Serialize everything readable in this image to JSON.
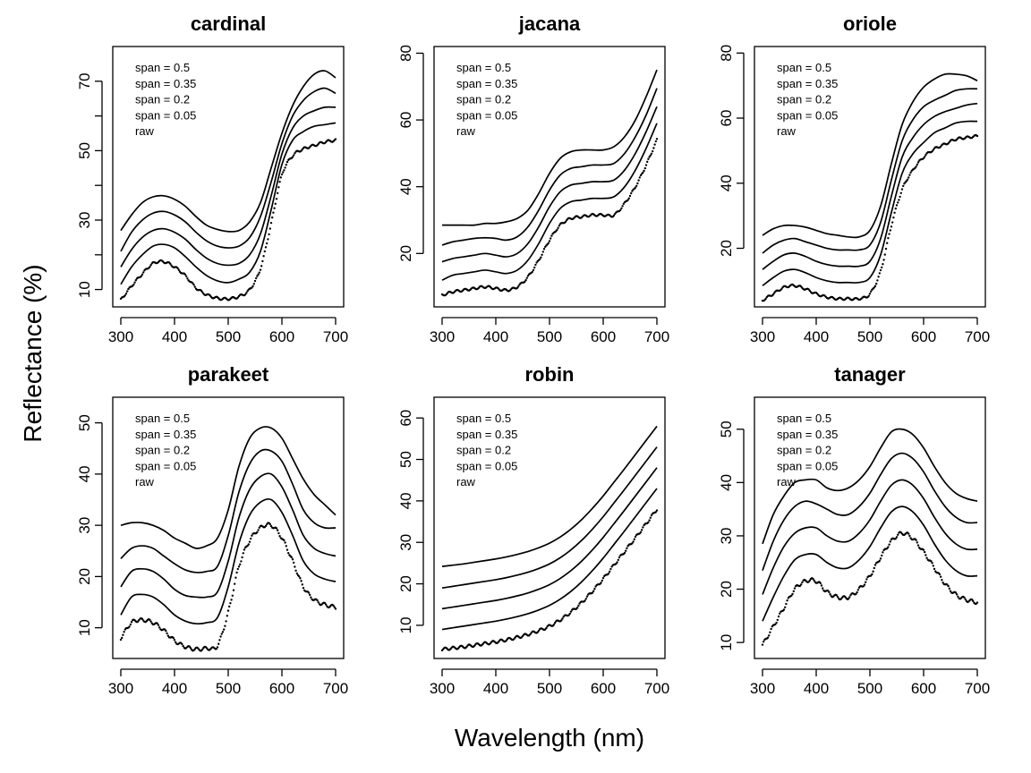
{
  "figure": {
    "xlabel": "Wavelength (nm)",
    "ylabel": "Reflectance (%)",
    "legend_entries": [
      "span = 0.5",
      "span = 0.35",
      "span = 0.2",
      "span = 0.05",
      "raw"
    ]
  },
  "chart_data": [
    {
      "type": "line",
      "title": "cardinal",
      "xlim": [
        300,
        700
      ],
      "ylim": [
        5,
        80
      ],
      "xticks": [
        300,
        400,
        500,
        600,
        700
      ],
      "yticks": [
        10,
        20,
        30,
        40,
        50,
        60,
        70
      ],
      "ytick_labels": [
        "10",
        "",
        "30",
        "",
        "50",
        "",
        "70"
      ],
      "legend_position": "top-left",
      "x": [
        300,
        320,
        340,
        360,
        380,
        400,
        420,
        440,
        460,
        480,
        500,
        520,
        540,
        560,
        580,
        600,
        620,
        640,
        660,
        680,
        700
      ],
      "series": [
        {
          "name": "raw",
          "style": "points",
          "values": [
            7,
            11,
            14.5,
            17.5,
            18,
            16.5,
            14,
            10.5,
            8.5,
            7.5,
            7.3,
            8,
            10,
            16,
            29,
            43,
            48.5,
            50.5,
            51.5,
            52.5,
            53
          ]
        },
        {
          "name": "span = 0.05",
          "style": "line",
          "values": [
            11.5,
            16.5,
            20,
            22.5,
            23,
            22,
            19.5,
            16.5,
            14,
            12.5,
            12,
            13,
            15,
            21,
            33,
            46,
            53,
            55.5,
            57,
            57.5,
            58
          ]
        },
        {
          "name": "span = 0.2",
          "style": "line",
          "values": [
            16.5,
            21.5,
            25,
            27,
            27.5,
            26.5,
            24.5,
            21.5,
            19,
            17.5,
            17,
            17.5,
            20,
            26,
            37,
            49,
            56.5,
            60,
            61.5,
            62.5,
            62.5
          ]
        },
        {
          "name": "span = 0.35",
          "style": "line",
          "values": [
            21,
            26.5,
            30,
            32,
            32.5,
            31.5,
            29.5,
            26.5,
            24,
            22.5,
            22,
            22.5,
            25,
            31,
            41,
            52,
            60,
            64.5,
            67,
            68,
            66.5
          ]
        },
        {
          "name": "span = 0.5",
          "style": "line",
          "values": [
            27,
            31.5,
            35,
            36.7,
            37,
            36,
            34,
            31,
            28.5,
            27.3,
            26.7,
            27,
            29.5,
            35,
            45,
            55,
            63,
            68.5,
            72,
            73,
            71
          ]
        }
      ]
    },
    {
      "type": "line",
      "title": "jacana",
      "xlim": [
        300,
        700
      ],
      "ylim": [
        4,
        82
      ],
      "xticks": [
        300,
        400,
        500,
        600,
        700
      ],
      "yticks": [
        20,
        40,
        60,
        80
      ],
      "ytick_labels": [
        "20",
        "40",
        "60",
        "80"
      ],
      "legend_position": "top-left",
      "x": [
        300,
        320,
        340,
        360,
        380,
        400,
        420,
        440,
        460,
        480,
        500,
        520,
        540,
        560,
        580,
        600,
        620,
        640,
        660,
        680,
        700
      ],
      "series": [
        {
          "name": "raw",
          "style": "points",
          "values": [
            7.5,
            8.5,
            9,
            9.5,
            10,
            9.5,
            9,
            10,
            13,
            18,
            24,
            28.5,
            30.5,
            31,
            31.5,
            31.5,
            31.5,
            35,
            40,
            46.5,
            54
          ]
        },
        {
          "name": "span = 0.05",
          "style": "line",
          "values": [
            12,
            13.5,
            14,
            14.5,
            15,
            14.5,
            14,
            15,
            18,
            23,
            29,
            33.5,
            35.5,
            36,
            36.5,
            36.5,
            37,
            40,
            45,
            51.5,
            59
          ]
        },
        {
          "name": "span = 0.2",
          "style": "line",
          "values": [
            17.5,
            18.5,
            19,
            19.5,
            20,
            19.5,
            19,
            20,
            23,
            28,
            34,
            38.5,
            40.5,
            41,
            41.5,
            41.5,
            42,
            45,
            50,
            56.5,
            64
          ]
        },
        {
          "name": "span = 0.35",
          "style": "line",
          "values": [
            22.5,
            23.5,
            24,
            24.5,
            24.7,
            24.5,
            24,
            25,
            28,
            33,
            39,
            43.5,
            45.5,
            46,
            46.5,
            46.5,
            47,
            50,
            55,
            61.5,
            69.5
          ]
        },
        {
          "name": "span = 0.5",
          "style": "line",
          "values": [
            28.5,
            28.5,
            28.5,
            28.5,
            29,
            29,
            29.5,
            30.5,
            33,
            38,
            44,
            48.5,
            50.5,
            51,
            51,
            51,
            52,
            55,
            60,
            67,
            75
          ]
        }
      ]
    },
    {
      "type": "line",
      "title": "oriole",
      "xlim": [
        300,
        700
      ],
      "ylim": [
        2,
        82
      ],
      "xticks": [
        300,
        400,
        500,
        600,
        700
      ],
      "yticks": [
        20,
        40,
        60,
        80
      ],
      "ytick_labels": [
        "20",
        "40",
        "60",
        "80"
      ],
      "legend_position": "top-left",
      "x": [
        300,
        320,
        340,
        360,
        380,
        400,
        420,
        440,
        460,
        480,
        500,
        520,
        540,
        560,
        580,
        600,
        620,
        640,
        660,
        680,
        700
      ],
      "series": [
        {
          "name": "raw",
          "style": "points",
          "values": [
            4,
            6,
            8,
            8.5,
            7.5,
            6,
            5,
            4.5,
            4.5,
            4.5,
            6,
            13,
            27,
            38,
            44,
            48,
            50.5,
            52,
            53.5,
            54,
            54.5
          ]
        },
        {
          "name": "span = 0.05",
          "style": "line",
          "values": [
            8.5,
            11,
            13,
            13.5,
            12.5,
            11,
            10,
            9.5,
            9.5,
            9.5,
            11,
            18,
            31,
            43,
            49,
            52.5,
            55.5,
            57,
            58.5,
            59,
            59
          ]
        },
        {
          "name": "span = 0.2",
          "style": "line",
          "values": [
            13.5,
            16,
            18,
            18.5,
            17.5,
            16,
            15,
            14.5,
            14.5,
            14.5,
            16,
            23,
            36,
            48,
            54,
            58,
            60.5,
            62,
            63,
            64,
            64.5
          ]
        },
        {
          "name": "span = 0.35",
          "style": "line",
          "values": [
            18.5,
            21,
            22.5,
            23,
            22,
            21,
            20,
            19.5,
            19.5,
            19.5,
            21,
            28,
            41,
            53,
            59.5,
            63.5,
            65.5,
            67,
            68.5,
            69,
            69
          ]
        },
        {
          "name": "span = 0.5",
          "style": "line",
          "values": [
            24,
            26,
            27,
            27,
            26.5,
            25.5,
            24.5,
            24,
            23.5,
            23.5,
            25.5,
            33,
            46,
            58,
            65,
            69.5,
            72,
            73.5,
            73.5,
            73,
            71.5
          ]
        }
      ]
    },
    {
      "type": "line",
      "title": "parakeet",
      "xlim": [
        300,
        700
      ],
      "ylim": [
        4,
        55
      ],
      "xticks": [
        300,
        400,
        500,
        600,
        700
      ],
      "yticks": [
        10,
        20,
        30,
        40,
        50
      ],
      "ytick_labels": [
        "10",
        "20",
        "30",
        "40",
        "50"
      ],
      "legend_position": "top-left",
      "x": [
        300,
        320,
        340,
        360,
        380,
        400,
        420,
        440,
        460,
        480,
        500,
        520,
        540,
        560,
        580,
        600,
        620,
        640,
        660,
        680,
        700
      ],
      "series": [
        {
          "name": "raw",
          "style": "points",
          "values": [
            8,
            11,
            11.5,
            11,
            9.5,
            7.5,
            6.3,
            5.8,
            6,
            6.5,
            13,
            22,
            27,
            29.5,
            30,
            27.5,
            23,
            18,
            15.5,
            14.5,
            14
          ]
        },
        {
          "name": "span = 0.05",
          "style": "line",
          "values": [
            12.5,
            16,
            16.5,
            16,
            14.5,
            12.5,
            11.3,
            10.8,
            11,
            12,
            18,
            26.5,
            32,
            34.5,
            35,
            32.5,
            28,
            23,
            20.5,
            19.5,
            19
          ]
        },
        {
          "name": "span = 0.2",
          "style": "line",
          "values": [
            18,
            21,
            21.5,
            21,
            19.5,
            17.5,
            16.3,
            16,
            16,
            17,
            23,
            31.5,
            37,
            39.5,
            40,
            37.5,
            33,
            28,
            25.5,
            24.5,
            24
          ]
        },
        {
          "name": "span = 0.35",
          "style": "line",
          "values": [
            23.5,
            25.5,
            26,
            25.5,
            24,
            22.5,
            21.3,
            20.8,
            21,
            22,
            28,
            36.5,
            42,
            44.5,
            44.5,
            42.5,
            38,
            33,
            30.5,
            29.5,
            29.5
          ]
        },
        {
          "name": "span = 0.5",
          "style": "line",
          "values": [
            30,
            30.5,
            30.5,
            30,
            29,
            27.5,
            26.5,
            25.5,
            26,
            27.5,
            33,
            41.5,
            47,
            49,
            49,
            47,
            43,
            39,
            36,
            34,
            32
          ]
        }
      ]
    },
    {
      "type": "line",
      "title": "robin",
      "xlim": [
        300,
        700
      ],
      "ylim": [
        2,
        65
      ],
      "xticks": [
        300,
        400,
        500,
        600,
        700
      ],
      "yticks": [
        10,
        20,
        30,
        40,
        50,
        60
      ],
      "ytick_labels": [
        "10",
        "20",
        "30",
        "40",
        "50",
        "60"
      ],
      "legend_position": "top-left",
      "x": [
        300,
        320,
        340,
        360,
        380,
        400,
        420,
        440,
        460,
        480,
        500,
        520,
        540,
        560,
        580,
        600,
        620,
        640,
        660,
        680,
        700
      ],
      "series": [
        {
          "name": "raw",
          "style": "points",
          "values": [
            4.2,
            4.5,
            4.8,
            5.2,
            5.6,
            6,
            6.5,
            7.1,
            7.8,
            8.7,
            9.8,
            11.3,
            13.2,
            15.5,
            18.2,
            21.2,
            24.5,
            27.8,
            31.1,
            34.5,
            38
          ]
        },
        {
          "name": "span = 0.05",
          "style": "line",
          "values": [
            9,
            9.4,
            9.8,
            10.2,
            10.6,
            11,
            11.5,
            12.1,
            12.8,
            13.7,
            14.8,
            16.3,
            18.2,
            20.5,
            23.2,
            26.2,
            29.5,
            32.8,
            36.2,
            39.6,
            43
          ]
        },
        {
          "name": "span = 0.2",
          "style": "line",
          "values": [
            14,
            14.4,
            14.8,
            15.2,
            15.6,
            16,
            16.5,
            17.1,
            17.8,
            18.7,
            19.8,
            21.3,
            23.2,
            25.5,
            28.2,
            31.2,
            34.5,
            37.8,
            41.2,
            44.6,
            48
          ]
        },
        {
          "name": "span = 0.35",
          "style": "line",
          "values": [
            19,
            19.4,
            19.8,
            20.2,
            20.6,
            21,
            21.5,
            22.1,
            22.8,
            23.7,
            24.8,
            26.3,
            28.2,
            30.5,
            33.2,
            36.2,
            39.5,
            42.8,
            46.2,
            49.6,
            53
          ]
        },
        {
          "name": "span = 0.5",
          "style": "line",
          "values": [
            24.2,
            24.5,
            24.8,
            25.2,
            25.6,
            26,
            26.5,
            27.1,
            27.8,
            28.7,
            29.8,
            31.3,
            33.2,
            35.5,
            38.2,
            41.2,
            44.5,
            47.8,
            51.2,
            54.6,
            58
          ]
        }
      ]
    },
    {
      "type": "line",
      "title": "tanager",
      "xlim": [
        300,
        700
      ],
      "ylim": [
        7,
        56
      ],
      "xticks": [
        300,
        400,
        500,
        600,
        700
      ],
      "yticks": [
        10,
        20,
        30,
        40,
        50
      ],
      "ytick_labels": [
        "10",
        "20",
        "30",
        "40",
        "50"
      ],
      "legend_position": "top-left",
      "x": [
        300,
        320,
        340,
        360,
        380,
        400,
        420,
        440,
        460,
        480,
        500,
        520,
        540,
        560,
        580,
        600,
        620,
        640,
        660,
        680,
        700
      ],
      "series": [
        {
          "name": "raw",
          "style": "points",
          "values": [
            9.5,
            13,
            16.5,
            20,
            21.5,
            21.5,
            19.5,
            18.5,
            18.5,
            20,
            22.5,
            26,
            29,
            30.5,
            29.5,
            27,
            24,
            21,
            19,
            18,
            17.5
          ]
        },
        {
          "name": "span = 0.05",
          "style": "line",
          "values": [
            14,
            18.5,
            22.5,
            25.5,
            26.5,
            26.5,
            25,
            24,
            24,
            25.5,
            28,
            31.5,
            34.5,
            35.5,
            34.5,
            32,
            28.5,
            25.5,
            23.5,
            22.5,
            22.5
          ]
        },
        {
          "name": "span = 0.2",
          "style": "line",
          "values": [
            19,
            24,
            28,
            30.5,
            31.5,
            31.5,
            30,
            29,
            29,
            30.5,
            33,
            36.5,
            39.5,
            40.5,
            39.5,
            37,
            33.5,
            30.5,
            28.5,
            27.5,
            27.5
          ]
        },
        {
          "name": "span = 0.35",
          "style": "line",
          "values": [
            23.5,
            29,
            33,
            35.5,
            36.5,
            36,
            35,
            34,
            34,
            35.5,
            38,
            41.5,
            44.5,
            45.5,
            44.5,
            42,
            38.5,
            35.5,
            33.5,
            32.5,
            32.5
          ]
        },
        {
          "name": "span = 0.5",
          "style": "line",
          "values": [
            28.5,
            34,
            37.5,
            40,
            40.5,
            40.5,
            39,
            38.5,
            39,
            40.5,
            43,
            46.5,
            49.5,
            50,
            49,
            46.5,
            43,
            40,
            38,
            37,
            36.5
          ]
        }
      ]
    }
  ]
}
